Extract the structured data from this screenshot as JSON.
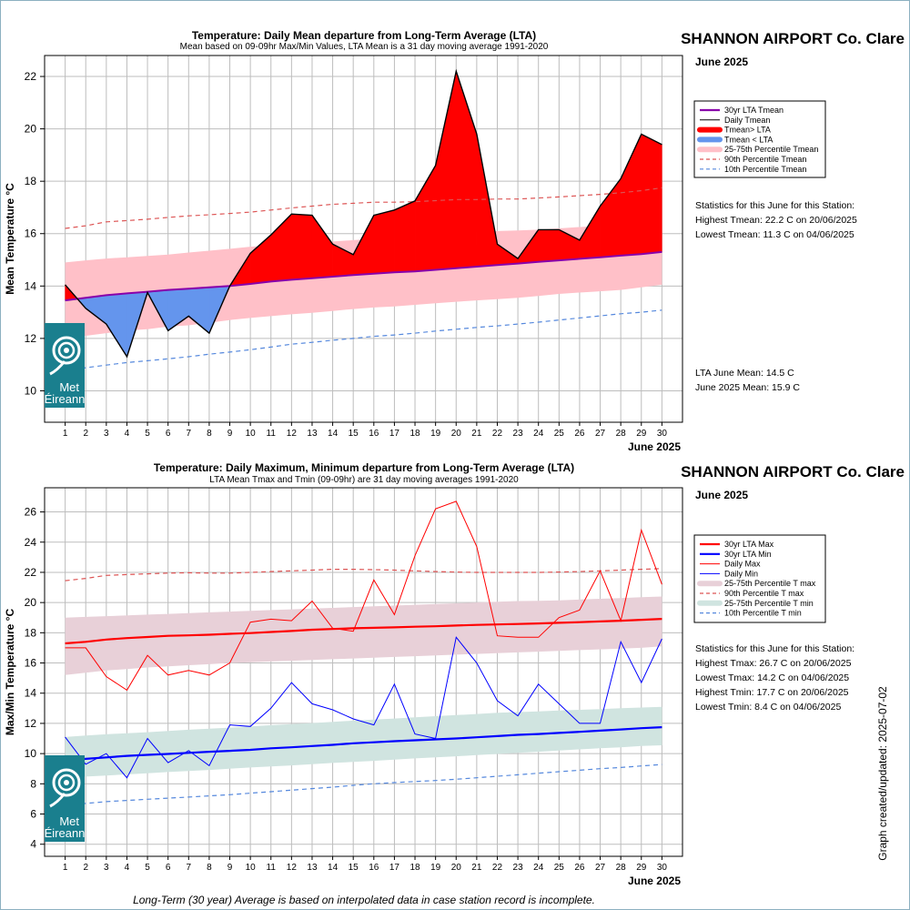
{
  "chart_data": [
    {
      "type": "line",
      "title": "Temperature: Daily Mean departure from Long-Term Average (LTA)",
      "subtitle": "Mean based on 09-09hr Max/Min Values, LTA Mean is a 31 day moving average 1991-2020",
      "station": "SHANNON AIRPORT Co. Clare",
      "month_label": "June 2025",
      "xlabel": "June 2025",
      "ylabel": "Mean Temperature °C",
      "ylim": [
        8.8,
        22.8
      ],
      "yticks": [
        10,
        12,
        14,
        16,
        18,
        20,
        22
      ],
      "x": [
        1,
        2,
        3,
        4,
        5,
        6,
        7,
        8,
        9,
        10,
        11,
        12,
        13,
        14,
        15,
        16,
        17,
        18,
        19,
        20,
        21,
        22,
        23,
        24,
        25,
        26,
        27,
        28,
        29,
        30
      ],
      "xtick_labels": [
        "1",
        "2",
        "3",
        "4",
        "5",
        "6",
        "7",
        "8",
        "9",
        "10",
        "11",
        "12",
        "13",
        "14",
        "15",
        "16",
        "17",
        "18",
        "19",
        "20",
        "21",
        "22",
        "23",
        "24",
        "25",
        "26",
        "27",
        "28",
        "29",
        "30"
      ],
      "grid": true,
      "legend_position": "right",
      "series": [
        {
          "name": "30yr LTA Tmean",
          "color": "#8800aa",
          "style": "line",
          "values": [
            13.45,
            13.55,
            13.65,
            13.72,
            13.78,
            13.85,
            13.9,
            13.95,
            14.0,
            14.08,
            14.17,
            14.24,
            14.3,
            14.36,
            14.42,
            14.47,
            14.52,
            14.56,
            14.62,
            14.68,
            14.74,
            14.8,
            14.86,
            14.92,
            14.98,
            15.04,
            15.1,
            15.16,
            15.22,
            15.3
          ]
        },
        {
          "name": "Daily Tmean",
          "color": "#000000",
          "style": "line",
          "values": [
            14.05,
            13.15,
            12.55,
            11.3,
            13.75,
            12.3,
            12.85,
            12.2,
            14.0,
            15.25,
            15.95,
            16.75,
            16.7,
            15.6,
            15.2,
            16.7,
            16.9,
            17.25,
            18.6,
            22.2,
            19.8,
            15.6,
            15.05,
            16.15,
            16.15,
            15.75,
            17.05,
            18.1,
            19.8,
            19.4
          ]
        },
        {
          "name": "Tmean> LTA",
          "color": "#ff0000",
          "style": "fill-above"
        },
        {
          "name": "Tmean < LTA",
          "color": "#6495ed",
          "style": "fill-below"
        },
        {
          "name": "25-75th Percentile Tmean",
          "color": "#ffc0c8",
          "style": "band",
          "low": [
            11.95,
            12.1,
            12.2,
            12.3,
            12.35,
            12.45,
            12.5,
            12.6,
            12.7,
            12.78,
            12.85,
            12.92,
            12.98,
            13.05,
            13.12,
            13.18,
            13.22,
            13.28,
            13.34,
            13.4,
            13.45,
            13.5,
            13.55,
            13.62,
            13.7,
            13.75,
            13.8,
            13.85,
            13.95,
            14.05
          ],
          "high": [
            14.9,
            14.98,
            15.05,
            15.1,
            15.15,
            15.2,
            15.28,
            15.35,
            15.42,
            15.5,
            15.55,
            15.6,
            15.65,
            15.7,
            15.75,
            15.8,
            15.85,
            15.9,
            15.95,
            16.0,
            16.05,
            16.1,
            16.12,
            16.15,
            16.2,
            16.25,
            16.3,
            16.35,
            16.4,
            16.5
          ]
        },
        {
          "name": "90th Percentile Tmean",
          "color": "#dd5555",
          "style": "dash",
          "values": [
            16.2,
            16.3,
            16.45,
            16.5,
            16.55,
            16.62,
            16.68,
            16.72,
            16.77,
            16.82,
            16.9,
            16.98,
            17.05,
            17.12,
            17.16,
            17.2,
            17.2,
            17.22,
            17.26,
            17.3,
            17.3,
            17.32,
            17.32,
            17.36,
            17.4,
            17.45,
            17.5,
            17.56,
            17.64,
            17.75
          ]
        },
        {
          "name": "10th Percentile Tmean",
          "color": "#5588dd",
          "style": "dash",
          "values": [
            10.75,
            10.88,
            10.98,
            11.08,
            11.15,
            11.22,
            11.3,
            11.4,
            11.48,
            11.57,
            11.67,
            11.78,
            11.85,
            11.93,
            12.0,
            12.08,
            12.13,
            12.2,
            12.28,
            12.35,
            12.42,
            12.48,
            12.55,
            12.62,
            12.7,
            12.78,
            12.86,
            12.94,
            13.0,
            13.08
          ]
        }
      ],
      "stats": [
        "Statistics for this June for this Station:",
        "Highest Tmean: 22.2 C on 20/06/2025",
        "Lowest Tmean: 11.3 C on 04/06/2025"
      ],
      "means": [
        "LTA June Mean: 14.5 C",
        "June 2025 Mean: 15.9 C"
      ]
    },
    {
      "type": "line",
      "title": "Temperature: Daily Maximum, Minimum departure from Long-Term Average (LTA)",
      "subtitle": "LTA Mean Tmax and Tmin (09-09hr) are 31 day moving averages 1991-2020",
      "station": "SHANNON AIRPORT Co. Clare",
      "month_label": "June 2025",
      "xlabel": "June 2025",
      "ylabel": "Max/Min Temperature °C",
      "ylim": [
        3.2,
        27.6
      ],
      "yticks": [
        4,
        6,
        8,
        10,
        12,
        14,
        16,
        18,
        20,
        22,
        24,
        26
      ],
      "x": [
        1,
        2,
        3,
        4,
        5,
        6,
        7,
        8,
        9,
        10,
        11,
        12,
        13,
        14,
        15,
        16,
        17,
        18,
        19,
        20,
        21,
        22,
        23,
        24,
        25,
        26,
        27,
        28,
        29,
        30
      ],
      "xtick_labels": [
        "1",
        "2",
        "3",
        "4",
        "5",
        "6",
        "7",
        "8",
        "9",
        "10",
        "11",
        "12",
        "13",
        "14",
        "15",
        "16",
        "17",
        "18",
        "19",
        "20",
        "21",
        "22",
        "23",
        "24",
        "25",
        "26",
        "27",
        "28",
        "29",
        "30"
      ],
      "grid": true,
      "legend_position": "right",
      "series": [
        {
          "name": "30yr LTA Max",
          "color": "#ff0000",
          "style": "thick",
          "values": [
            17.3,
            17.4,
            17.55,
            17.65,
            17.72,
            17.8,
            17.83,
            17.87,
            17.93,
            17.98,
            18.05,
            18.12,
            18.2,
            18.25,
            18.3,
            18.33,
            18.36,
            18.4,
            18.43,
            18.48,
            18.52,
            18.55,
            18.58,
            18.62,
            18.66,
            18.7,
            18.75,
            18.8,
            18.86,
            18.92
          ]
        },
        {
          "name": "30yr LTA Min",
          "color": "#0000ff",
          "style": "thick",
          "values": [
            9.55,
            9.65,
            9.75,
            9.85,
            9.92,
            9.98,
            10.05,
            10.12,
            10.18,
            10.25,
            10.35,
            10.42,
            10.5,
            10.58,
            10.68,
            10.75,
            10.82,
            10.88,
            10.94,
            11.0,
            11.08,
            11.16,
            11.24,
            11.3,
            11.37,
            11.44,
            11.52,
            11.6,
            11.68,
            11.75
          ]
        },
        {
          "name": "Daily Max",
          "color": "#ff0000",
          "style": "thin",
          "values": [
            17.0,
            17.0,
            15.1,
            14.2,
            16.5,
            15.2,
            15.5,
            15.2,
            16.0,
            18.7,
            18.9,
            18.8,
            20.1,
            18.3,
            18.1,
            21.5,
            19.2,
            23.1,
            26.2,
            26.7,
            23.7,
            17.8,
            17.7,
            17.7,
            19.0,
            19.5,
            22.1,
            18.8,
            24.8,
            21.2
          ]
        },
        {
          "name": "Daily Min",
          "color": "#0000ff",
          "style": "thin",
          "values": [
            11.1,
            9.3,
            10.0,
            8.4,
            11.0,
            9.4,
            10.2,
            9.2,
            11.9,
            11.8,
            13.0,
            14.7,
            13.3,
            12.9,
            12.3,
            11.9,
            14.6,
            11.3,
            11.0,
            17.7,
            16.0,
            13.5,
            12.5,
            14.6,
            13.3,
            12.0,
            12.0,
            17.4,
            14.7,
            17.6
          ]
        },
        {
          "name": "25-75th Percentile T max",
          "color": "#e8d0d8",
          "style": "band",
          "low": [
            15.2,
            15.35,
            15.5,
            15.6,
            15.7,
            15.78,
            15.85,
            15.92,
            16.0,
            16.05,
            16.1,
            16.15,
            16.2,
            16.25,
            16.3,
            16.35,
            16.4,
            16.45,
            16.5,
            16.55,
            16.6,
            16.65,
            16.7,
            16.75,
            16.8,
            16.85,
            16.9,
            16.95,
            17.0,
            17.1
          ],
          "high": [
            19.0,
            19.05,
            19.1,
            19.15,
            19.2,
            19.25,
            19.3,
            19.35,
            19.4,
            19.45,
            19.5,
            19.55,
            19.6,
            19.65,
            19.7,
            19.75,
            19.8,
            19.85,
            19.9,
            19.95,
            20.0,
            20.05,
            20.1,
            20.12,
            20.15,
            20.2,
            20.25,
            20.3,
            20.35,
            20.4
          ]
        },
        {
          "name": "90th Percentile T max",
          "color": "#dd5555",
          "style": "dash",
          "values": [
            21.45,
            21.6,
            21.8,
            21.85,
            21.9,
            21.95,
            21.97,
            21.95,
            21.95,
            22.0,
            22.05,
            22.1,
            22.15,
            22.2,
            22.2,
            22.18,
            22.15,
            22.1,
            22.05,
            22.02,
            22.0,
            22.0,
            22.0,
            22.0,
            22.02,
            22.05,
            22.1,
            22.15,
            22.2,
            22.25
          ]
        },
        {
          "name": "25-75th Percentile T min",
          "color": "#d0e4e0",
          "style": "band",
          "low": [
            8.4,
            8.48,
            8.55,
            8.62,
            8.7,
            8.78,
            8.85,
            8.92,
            9.0,
            9.08,
            9.15,
            9.22,
            9.3,
            9.38,
            9.45,
            9.52,
            9.6,
            9.68,
            9.75,
            9.82,
            9.9,
            9.98,
            10.05,
            10.12,
            10.2,
            10.28,
            10.35,
            10.42,
            10.5,
            10.55
          ],
          "high": [
            11.1,
            11.2,
            11.28,
            11.35,
            11.42,
            11.5,
            11.58,
            11.65,
            11.72,
            11.8,
            11.88,
            11.95,
            12.02,
            12.1,
            12.18,
            12.25,
            12.32,
            12.4,
            12.48,
            12.55,
            12.62,
            12.7,
            12.75,
            12.8,
            12.85,
            12.9,
            12.95,
            13.0,
            13.05,
            13.1
          ]
        },
        {
          "name": "10th Percentile T min",
          "color": "#5588dd",
          "style": "dash",
          "values": [
            6.55,
            6.7,
            6.82,
            6.9,
            6.98,
            7.05,
            7.12,
            7.2,
            7.28,
            7.38,
            7.48,
            7.58,
            7.68,
            7.78,
            7.9,
            8.0,
            8.08,
            8.15,
            8.22,
            8.3,
            8.4,
            8.5,
            8.6,
            8.7,
            8.8,
            8.9,
            9.0,
            9.08,
            9.18,
            9.28
          ]
        }
      ],
      "stats": [
        "Statistics for this June for this Station:",
        "Highest Tmax: 26.7 C on 20/06/2025",
        "Lowest Tmax: 14.2 C on 04/06/2025",
        "Highest Tmin: 17.7 C on 20/06/2025",
        "Lowest Tmin: 8.4 C on 04/06/2025"
      ]
    }
  ],
  "logo": {
    "line1": "Met",
    "line2": "Éireann",
    "icon": "met-eireann-swirl-icon",
    "color": "#1a7f8e"
  },
  "footer": "Long-Term (30 year) Average is based on interpolated data in case station record is incomplete.",
  "side_note": "Graph created/updated:  2025-07-02"
}
